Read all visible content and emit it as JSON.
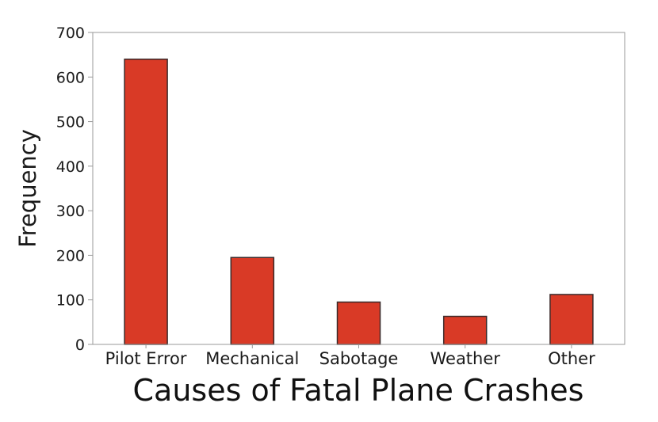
{
  "chart_data": {
    "type": "bar",
    "categories": [
      "Pilot Error",
      "Mechanical",
      "Sabotage",
      "Weather",
      "Other"
    ],
    "values": [
      640,
      195,
      95,
      63,
      112
    ],
    "title": "",
    "xlabel": "Causes of Fatal Plane Crashes",
    "ylabel": "Frequency",
    "ylim": [
      0,
      700
    ],
    "yticks": [
      0,
      100,
      200,
      300,
      400,
      500,
      600,
      700
    ],
    "grid": false,
    "bar_color": "#d93a26",
    "bar_edge_color": "#3a2a2a",
    "axis_color": "#9a9a9a"
  }
}
